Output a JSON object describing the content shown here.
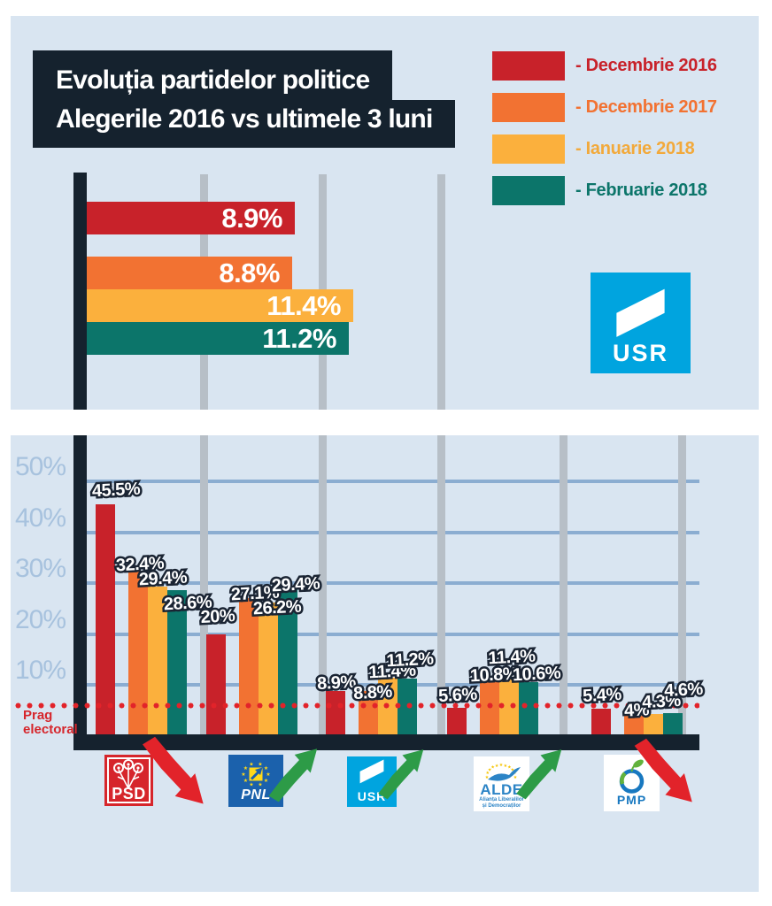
{
  "title": {
    "line1": "Evoluția partidelor politice",
    "line2": "Alegerile 2016 vs ultimele 3 luni"
  },
  "legend": [
    {
      "label": "- Decembrie 2016",
      "color": "#c8222a"
    },
    {
      "label": "- Decembrie 2017",
      "color": "#f27232"
    },
    {
      "label": "- Ianuarie 2018",
      "color": "#fbb03d"
    },
    {
      "label": "- Februarie 2018",
      "color": "#0c756a"
    }
  ],
  "usr_badge": {
    "text": "USR",
    "color": "#00a4df"
  },
  "chart_data": [
    {
      "type": "bar",
      "orientation": "horizontal",
      "title": "USR — Alegerile 2016 vs ultimele 3 luni",
      "categories": [
        "Decembrie 2016",
        "Decembrie 2017",
        "Ianuarie 2018",
        "Februarie 2018"
      ],
      "values": [
        8.9,
        8.8,
        11.4,
        11.2
      ],
      "labels": [
        "8.9%",
        "8.8%",
        "11.4%",
        "11.2%"
      ],
      "xlim": [
        0,
        15
      ],
      "grid_step_percent": 5,
      "legend_position": "top-right"
    },
    {
      "type": "bar",
      "orientation": "vertical",
      "grouped": true,
      "categories": [
        "PSD",
        "PNL",
        "USR",
        "ALDE",
        "PMP"
      ],
      "series": [
        {
          "name": "Decembrie 2016",
          "color": "#c8222a",
          "values": [
            45.5,
            20,
            8.9,
            5.6,
            5.4
          ]
        },
        {
          "name": "Decembrie 2017",
          "color": "#f27232",
          "values": [
            32.4,
            27.1,
            8.8,
            10.8,
            4
          ]
        },
        {
          "name": "Ianuarie 2018",
          "color": "#fbb03d",
          "values": [
            29.4,
            26.2,
            11.4,
            11.4,
            4.3
          ]
        },
        {
          "name": "Februarie 2018",
          "color": "#0c756a",
          "values": [
            28.6,
            29.4,
            11.2,
            10.6,
            4.6
          ]
        }
      ],
      "labels": [
        [
          "45.5%",
          "32.4%",
          "29.4%",
          "28.6%"
        ],
        [
          "20%",
          "27.1%",
          "26.2%",
          "29.4%"
        ],
        [
          "8.9%",
          "8.8%",
          "11.4%",
          "11.2%"
        ],
        [
          "5.6%",
          "10.8%",
          "11.4%",
          "10.6%"
        ],
        [
          "5.4%",
          "4%",
          "4.3%",
          "4.6%"
        ]
      ],
      "yticks": [
        "50%",
        "40%",
        "30%",
        "20%",
        "10%"
      ],
      "ytick_values": [
        50,
        40,
        30,
        20,
        10
      ],
      "ylim": [
        0,
        52
      ],
      "grid": true,
      "threshold": {
        "label": "Prag electoral",
        "value": 5,
        "color": "#e2232a"
      },
      "trends": [
        "down",
        "up",
        "up",
        "up",
        "down"
      ]
    }
  ],
  "parties": [
    {
      "name": "PSD",
      "trend": "down"
    },
    {
      "name": "PNL",
      "trend": "up"
    },
    {
      "name": "USR",
      "trend": "up"
    },
    {
      "name": "ALDE",
      "trend": "up",
      "subtext1": "Alianța Liberalilor",
      "subtext2": "și Democraților"
    },
    {
      "name": "PMP",
      "trend": "down"
    }
  ],
  "colors": {
    "panel_bg": "#d9e5f1",
    "navy": "#15222e",
    "grid_blue": "#8badd1",
    "grid_gray": "#b7bfc7",
    "tick_blue": "#a7c2de",
    "threshold_red": "#e2232a",
    "trend_up": "#2d9b47",
    "trend_down": "#e2232a",
    "usr_blue": "#00a4df",
    "pnl_blue": "#1b61ac",
    "alde_blue": "#2c84c6",
    "pmp_blue": "#1878c0",
    "psd_red": "#d6252b",
    "leaf_green": "#62b23c"
  }
}
